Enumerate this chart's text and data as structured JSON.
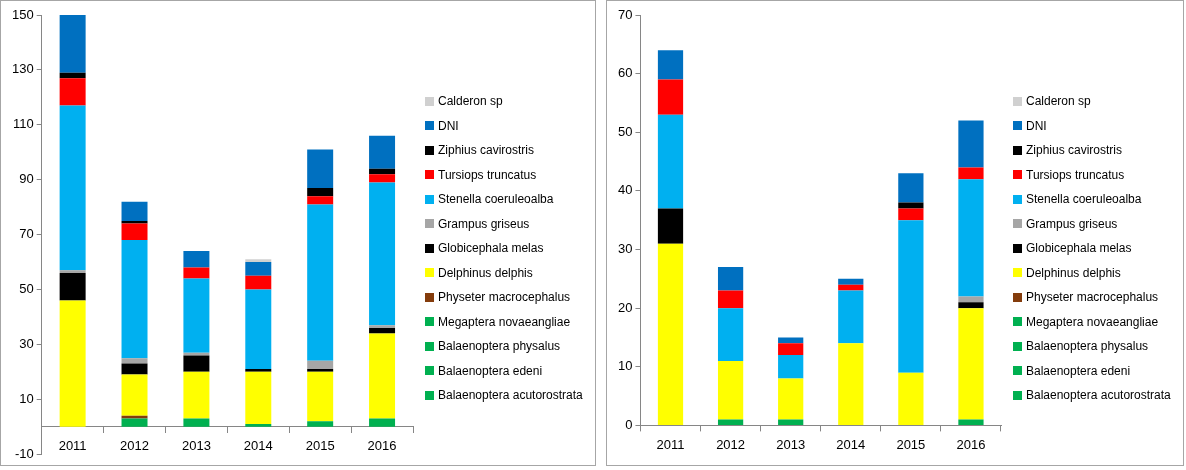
{
  "chart_data": [
    {
      "type": "bar",
      "stacked": true,
      "legend": "right",
      "categories": [
        "2011",
        "2012",
        "2013",
        "2014",
        "2015",
        "2016"
      ],
      "ylim": [
        -10,
        150
      ],
      "yticks": [
        -10,
        10,
        30,
        50,
        70,
        90,
        110,
        130,
        150
      ],
      "series": [
        {
          "name": "Balaenoptera acutorostrata",
          "color": "#00b050",
          "values": [
            0,
            3,
            3,
            1,
            2,
            3
          ]
        },
        {
          "name": "Balaenoptera edeni",
          "color": "#00b050",
          "values": [
            0,
            0,
            0,
            0,
            0,
            0
          ]
        },
        {
          "name": "Balaenoptera physalus",
          "color": "#00b050",
          "values": [
            0,
            0,
            0,
            0,
            0,
            0
          ]
        },
        {
          "name": "Megaptera novaeangliae",
          "color": "#00b050",
          "values": [
            0,
            0,
            0,
            0,
            0,
            0
          ]
        },
        {
          "name": "Physeter macrocephalus",
          "color": "#843c0c",
          "values": [
            0,
            1,
            0,
            0,
            0,
            0
          ]
        },
        {
          "name": "Delphinus delphis",
          "color": "#ffff00",
          "values": [
            46,
            15,
            17,
            19,
            18,
            31
          ]
        },
        {
          "name": "Globicephala melas",
          "color": "#000000",
          "values": [
            10,
            4,
            6,
            1,
            1,
            2
          ]
        },
        {
          "name": "Grampus griseus",
          "color": "#a6a6a6",
          "values": [
            1,
            2,
            1,
            0,
            3,
            1
          ]
        },
        {
          "name": "Stenella coeruleoalba",
          "color": "#00b0f0",
          "values": [
            60,
            43,
            27,
            29,
            57,
            52
          ]
        },
        {
          "name": "Tursiops truncatus",
          "color": "#ff0000",
          "values": [
            10,
            6,
            4,
            5,
            3,
            3
          ]
        },
        {
          "name": "Ziphius cavirostris",
          "color": "#000000",
          "values": [
            2,
            1,
            0,
            0,
            3,
            2
          ]
        },
        {
          "name": "DNI",
          "color": "#0070c0",
          "values": [
            21,
            7,
            6,
            5,
            14,
            12
          ]
        },
        {
          "name": "Calderon sp",
          "color": "#d0d0d0",
          "values": [
            0,
            0,
            0,
            1,
            0,
            0
          ]
        }
      ]
    },
    {
      "type": "bar",
      "stacked": true,
      "legend": "right",
      "categories": [
        "2011",
        "2012",
        "2013",
        "2014",
        "2015",
        "2016"
      ],
      "ylim": [
        0,
        70
      ],
      "yticks": [
        0,
        10,
        20,
        30,
        40,
        50,
        60,
        70
      ],
      "series": [
        {
          "name": "Balaenoptera acutorostrata",
          "color": "#00b050",
          "values": [
            0,
            1,
            1,
            0,
            0,
            1
          ]
        },
        {
          "name": "Balaenoptera edeni",
          "color": "#00b050",
          "values": [
            0,
            0,
            0,
            0,
            0,
            0
          ]
        },
        {
          "name": "Balaenoptera physalus",
          "color": "#00b050",
          "values": [
            0,
            0,
            0,
            0,
            0,
            0
          ]
        },
        {
          "name": "Megaptera novaeangliae",
          "color": "#00b050",
          "values": [
            0,
            0,
            0,
            0,
            0,
            0
          ]
        },
        {
          "name": "Physeter macrocephalus",
          "color": "#843c0c",
          "values": [
            0,
            0,
            0,
            0,
            0,
            0
          ]
        },
        {
          "name": "Delphinus delphis",
          "color": "#ffff00",
          "values": [
            31,
            10,
            7,
            14,
            9,
            19
          ]
        },
        {
          "name": "Globicephala melas",
          "color": "#000000",
          "values": [
            6,
            0,
            0,
            0,
            0,
            1
          ]
        },
        {
          "name": "Grampus griseus",
          "color": "#a6a6a6",
          "values": [
            0,
            0,
            0,
            0,
            0,
            1
          ]
        },
        {
          "name": "Stenella coeruleoalba",
          "color": "#00b0f0",
          "values": [
            16,
            9,
            4,
            9,
            26,
            20
          ]
        },
        {
          "name": "Tursiops truncatus",
          "color": "#ff0000",
          "values": [
            6,
            3,
            2,
            1,
            2,
            2
          ]
        },
        {
          "name": "Ziphius cavirostris",
          "color": "#000000",
          "values": [
            0,
            0,
            0,
            0,
            1,
            0
          ]
        },
        {
          "name": "DNI",
          "color": "#0070c0",
          "values": [
            5,
            4,
            1,
            1,
            5,
            8
          ]
        },
        {
          "name": "Calderon sp",
          "color": "#d0d0d0",
          "values": [
            0,
            0,
            0,
            0,
            0,
            0
          ]
        }
      ]
    }
  ]
}
